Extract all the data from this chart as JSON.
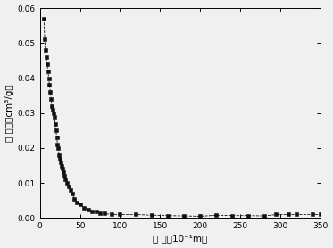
{
  "xlabel": "孔 径（10⁻¹m）",
  "ylabel": "孔 体积（cm³/g）",
  "xlim": [
    0,
    350
  ],
  "ylim": [
    0.0,
    0.06
  ],
  "xticks": [
    0,
    50,
    100,
    150,
    200,
    250,
    300,
    350
  ],
  "yticks": [
    0.0,
    0.01,
    0.02,
    0.03,
    0.04,
    0.05,
    0.06
  ],
  "xtick_labels": [
    "0",
    "50",
    "100",
    "150",
    "200",
    "250",
    "300",
    "350"
  ],
  "ytick_labels": [
    "0.00",
    "0.01",
    "0.02",
    "0.03",
    "0.04",
    "0.05",
    "0.06"
  ],
  "marker_color": "#111111",
  "line_color": "#111111",
  "x": [
    5,
    6,
    7,
    8,
    9,
    10,
    11,
    12,
    13,
    14,
    15,
    16,
    17,
    18,
    19,
    20,
    21,
    22,
    23,
    24,
    25,
    26,
    27,
    28,
    29,
    30,
    32,
    34,
    36,
    38,
    40,
    43,
    46,
    50,
    55,
    60,
    65,
    70,
    75,
    80,
    90,
    100,
    120,
    140,
    160,
    180,
    200,
    220,
    240,
    260,
    280,
    295,
    310,
    320,
    340,
    350
  ],
  "y": [
    0.057,
    0.051,
    0.048,
    0.046,
    0.044,
    0.042,
    0.04,
    0.038,
    0.036,
    0.034,
    0.032,
    0.031,
    0.03,
    0.029,
    0.027,
    0.025,
    0.023,
    0.021,
    0.02,
    0.018,
    0.017,
    0.016,
    0.015,
    0.014,
    0.013,
    0.012,
    0.011,
    0.01,
    0.009,
    0.008,
    0.007,
    0.0055,
    0.0045,
    0.004,
    0.003,
    0.0025,
    0.002,
    0.0018,
    0.0015,
    0.0013,
    0.001,
    0.001,
    0.001,
    0.0008,
    0.0007,
    0.0006,
    0.0005,
    0.0008,
    0.0007,
    0.0007,
    0.0006,
    0.001,
    0.001,
    0.001,
    0.001,
    0.001
  ],
  "background_color": "#f0f0f0",
  "figsize": [
    3.73,
    2.78
  ],
  "dpi": 100
}
